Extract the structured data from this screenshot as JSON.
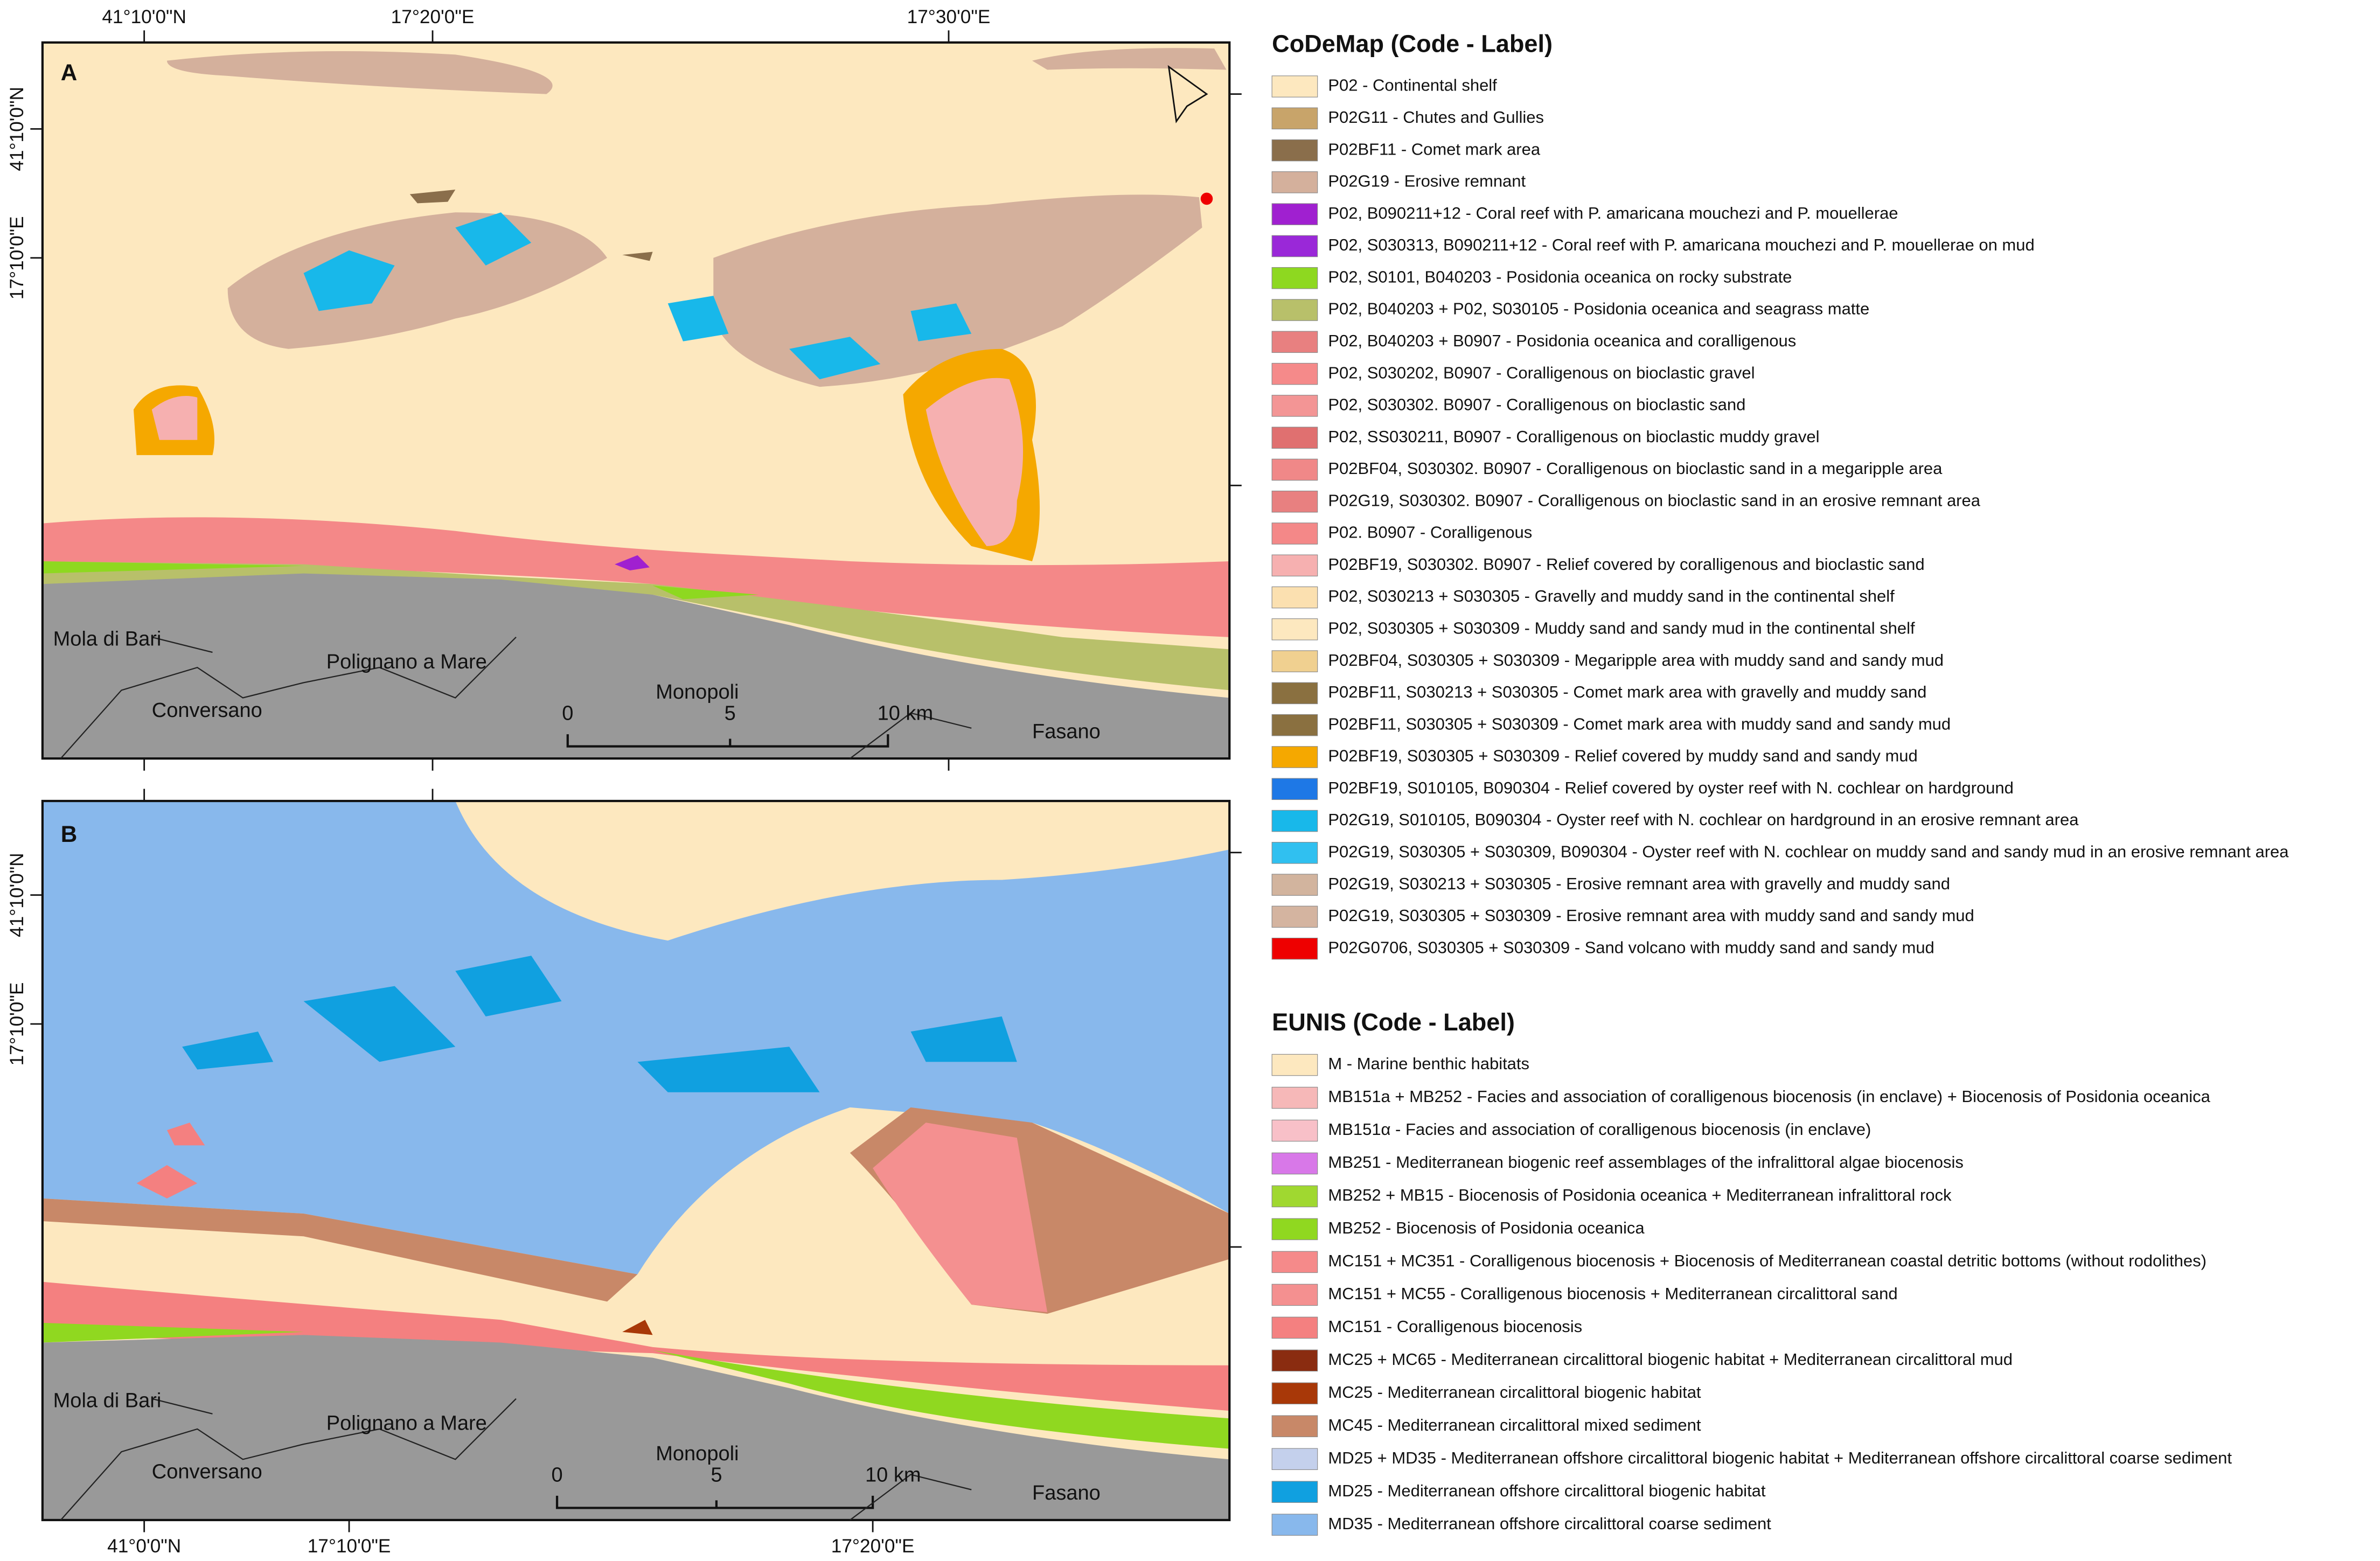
{
  "panel_a": {
    "label": "A",
    "top_axis_labels": [
      "41°10'0\"N",
      "17°20'0\"E",
      "17°30'0\"E"
    ],
    "left_axis_labels": [
      "41°10'0\"N",
      "17°10'0\"E"
    ],
    "places": [
      "Mola di Bari",
      "Polignano a Mare",
      "Conversano",
      "Monopoli",
      "Fasano"
    ],
    "scale": [
      "0",
      "5",
      "10 km"
    ]
  },
  "panel_b": {
    "label": "B",
    "left_axis_labels": [
      "41°10'0\"N",
      "17°10'0\"E"
    ],
    "bottom_axis_labels": [
      "41°0'0\"N",
      "17°10'0\"E",
      "17°20'0\"E"
    ],
    "places": [
      "Mola di Bari",
      "Polignano a Mare",
      "Conversano",
      "Monopoli",
      "Fasano"
    ],
    "scale": [
      "0",
      "5",
      "10 km"
    ]
  },
  "legends": [
    {
      "title": "CoDeMap (Code - Label)",
      "items": [
        {
          "label": "P02 - Continental shelf",
          "color": "#fde8bf"
        },
        {
          "label": "P02G11 - Chutes and Gullies",
          "color": "#c8a46a"
        },
        {
          "label": "P02BF11 - Comet mark area",
          "color": "#8a6e4b"
        },
        {
          "label": "P02G19 - Erosive remnant",
          "color": "#d4b09c"
        },
        {
          "label": "P02, B090211+12 - Coral reef with P. amaricana mouchezi and P. mouellerae",
          "color": "#a020d0"
        },
        {
          "label": "P02, S030313, B090211+12 - Coral reef with P. amaricana mouchezi and P. mouellerae on mud",
          "color": "#9a28d8"
        },
        {
          "label": "P02, S0101, B040203 - Posidonia oceanica on rocky substrate",
          "color": "#8ed820"
        },
        {
          "label": "P02, B040203 + P02, S030105 - Posidonia oceanica and seagrass matte",
          "color": "#b8c06a"
        },
        {
          "label": "P02, B040203 + B0907 - Posidonia oceanica and coralligenous",
          "color": "#e88080"
        },
        {
          "label": "P02, S030202, B0907 - Coralligenous on bioclastic gravel",
          "color": "#f58a8a"
        },
        {
          "label": "P02, S030302. B0907 - Coralligenous on bioclastic sand",
          "color": "#f39595"
        },
        {
          "label": "P02, SS030211, B0907 - Coralligenous on bioclastic muddy gravel",
          "color": "#e07070"
        },
        {
          "label": "P02BF04, S030302. B0907 - Coralligenous on bioclastic sand in a megaripple area",
          "color": "#f08888"
        },
        {
          "label": "P02G19, S030302. B0907 - Coralligenous on bioclastic sand in an erosive remnant area",
          "color": "#e88080"
        },
        {
          "label": "P02. B0907 - Coralligenous",
          "color": "#f48888"
        },
        {
          "label": "P02BF19, S030302. B0907 - Relief covered by coralligenous and bioclastic sand",
          "color": "#f6b0b0"
        },
        {
          "label": "P02, S030213 + S030305 - Gravelly and muddy sand in the continental shelf",
          "color": "#fbe0b0"
        },
        {
          "label": "P02, S030305 + S030309 - Muddy sand and sandy mud in the continental shelf",
          "color": "#fde8bf"
        },
        {
          "label": "P02BF04, S030305 + S030309 - Megaripple area with muddy sand and sandy mud",
          "color": "#f0d090"
        },
        {
          "label": "P02BF11, S030213 + S030305 - Comet mark area with gravelly and muddy sand",
          "color": "#8a7040"
        },
        {
          "label": "P02BF11, S030305 + S030309 - Comet mark area with muddy sand and sandy mud",
          "color": "#8a7040"
        },
        {
          "label": "P02BF19, S030305 + S030309 - Relief covered by muddy sand and sandy mud",
          "color": "#f5a800"
        },
        {
          "label": "P02BF19, S010105, B090304 - Relief covered by oyster reef with N. cochlear on hardground",
          "color": "#1e78e6"
        },
        {
          "label": "P02G19, S010105, B090304 - Oyster reef with N. cochlear on hardground in an erosive remnant area",
          "color": "#18b8ea"
        },
        {
          "label": "P02G19, S030305 + S030309, B090304 - Oyster reef with N. cochlear on muddy sand and sandy mud in an erosive remnant area",
          "color": "#30c0f0"
        },
        {
          "label": "P02G19, S030213 + S030305 - Erosive remnant area with gravelly and muddy sand",
          "color": "#d2b49e"
        },
        {
          "label": "P02G19, S030305 + S030309 - Erosive remnant area with muddy sand and sandy mud",
          "color": "#d4b4a0"
        },
        {
          "label": "P02G0706, S030305 + S030309 - Sand volcano with muddy sand and sandy mud",
          "color": "#ee0000"
        }
      ]
    },
    {
      "title": "EUNIS (Code - Label)",
      "items": [
        {
          "label": "M - Marine benthic habitats",
          "color": "#fde8bf"
        },
        {
          "label": "MB151a + MB252 - Facies and association of coralligenous biocenosis (in enclave) + Biocenosis of Posidonia oceanica",
          "color": "#f6b8b8"
        },
        {
          "label": "MB151α - Facies and association of coralligenous biocenosis (in enclave)",
          "color": "#f8c0c8"
        },
        {
          "label": "MB251 - Mediterranean biogenic reef assemblages of the infralittoral algae biocenosis",
          "color": "#d878e8"
        },
        {
          "label": "MB252 + MB15 - Biocenosis of Posidonia oceanica + Mediterranean infralittoral rock",
          "color": "#a0d830"
        },
        {
          "label": "MB252 - Biocenosis of Posidonia oceanica",
          "color": "#90d820"
        },
        {
          "label": "MC151 + MC351 - Coralligenous biocenosis + Biocenosis of Mediterranean coastal detritic bottoms (without rodolithes)",
          "color": "#f58a8a"
        },
        {
          "label": "MC151 + MC55 - Coralligenous biocenosis + Mediterranean circalittoral sand",
          "color": "#f49090"
        },
        {
          "label": "MC151 - Coralligenous biocenosis",
          "color": "#f48080"
        },
        {
          "label": "MC25 + MC65 - Mediterranean circalittoral biogenic habitat + Mediterranean circalittoral mud",
          "color": "#8a2c10"
        },
        {
          "label": "MC25 - Mediterranean circalittoral biogenic habitat",
          "color": "#a83808"
        },
        {
          "label": "MC45 - Mediterranean circalittoral mixed sediment",
          "color": "#c88868"
        },
        {
          "label": "MD25 + MD35 - Mediterranean offshore circalittoral biogenic habitat + Mediterranean offshore circalittoral coarse sediment",
          "color": "#c4d0ec"
        },
        {
          "label": "MD25 - Mediterranean offshore circalittoral biogenic habitat",
          "color": "#10a0e0"
        },
        {
          "label": "MD35 - Mediterranean offshore circalittoral coarse sediment",
          "color": "#88b8ec"
        }
      ]
    }
  ]
}
